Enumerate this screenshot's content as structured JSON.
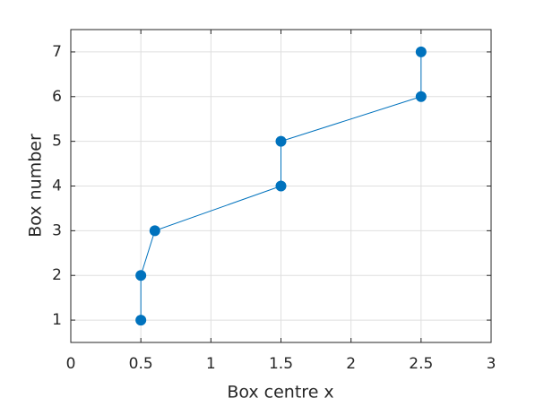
{
  "chart_data": {
    "type": "line",
    "xlabel": "Box centre x",
    "ylabel": "Box number",
    "x": [
      0.5,
      0.5,
      0.6,
      1.5,
      1.5,
      2.5,
      2.5
    ],
    "series": [
      {
        "name": "Box number",
        "color": "#0072bd",
        "values": [
          1,
          2,
          3,
          4,
          5,
          6,
          7
        ]
      }
    ],
    "xlim": [
      0,
      3
    ],
    "xticks": [
      0,
      0.5,
      1,
      1.5,
      2,
      2.5,
      3
    ],
    "ylim": [
      0.5,
      7.5
    ],
    "yticks": [
      1,
      2,
      3,
      4,
      5,
      6,
      7
    ],
    "grid": true,
    "markers": true
  }
}
